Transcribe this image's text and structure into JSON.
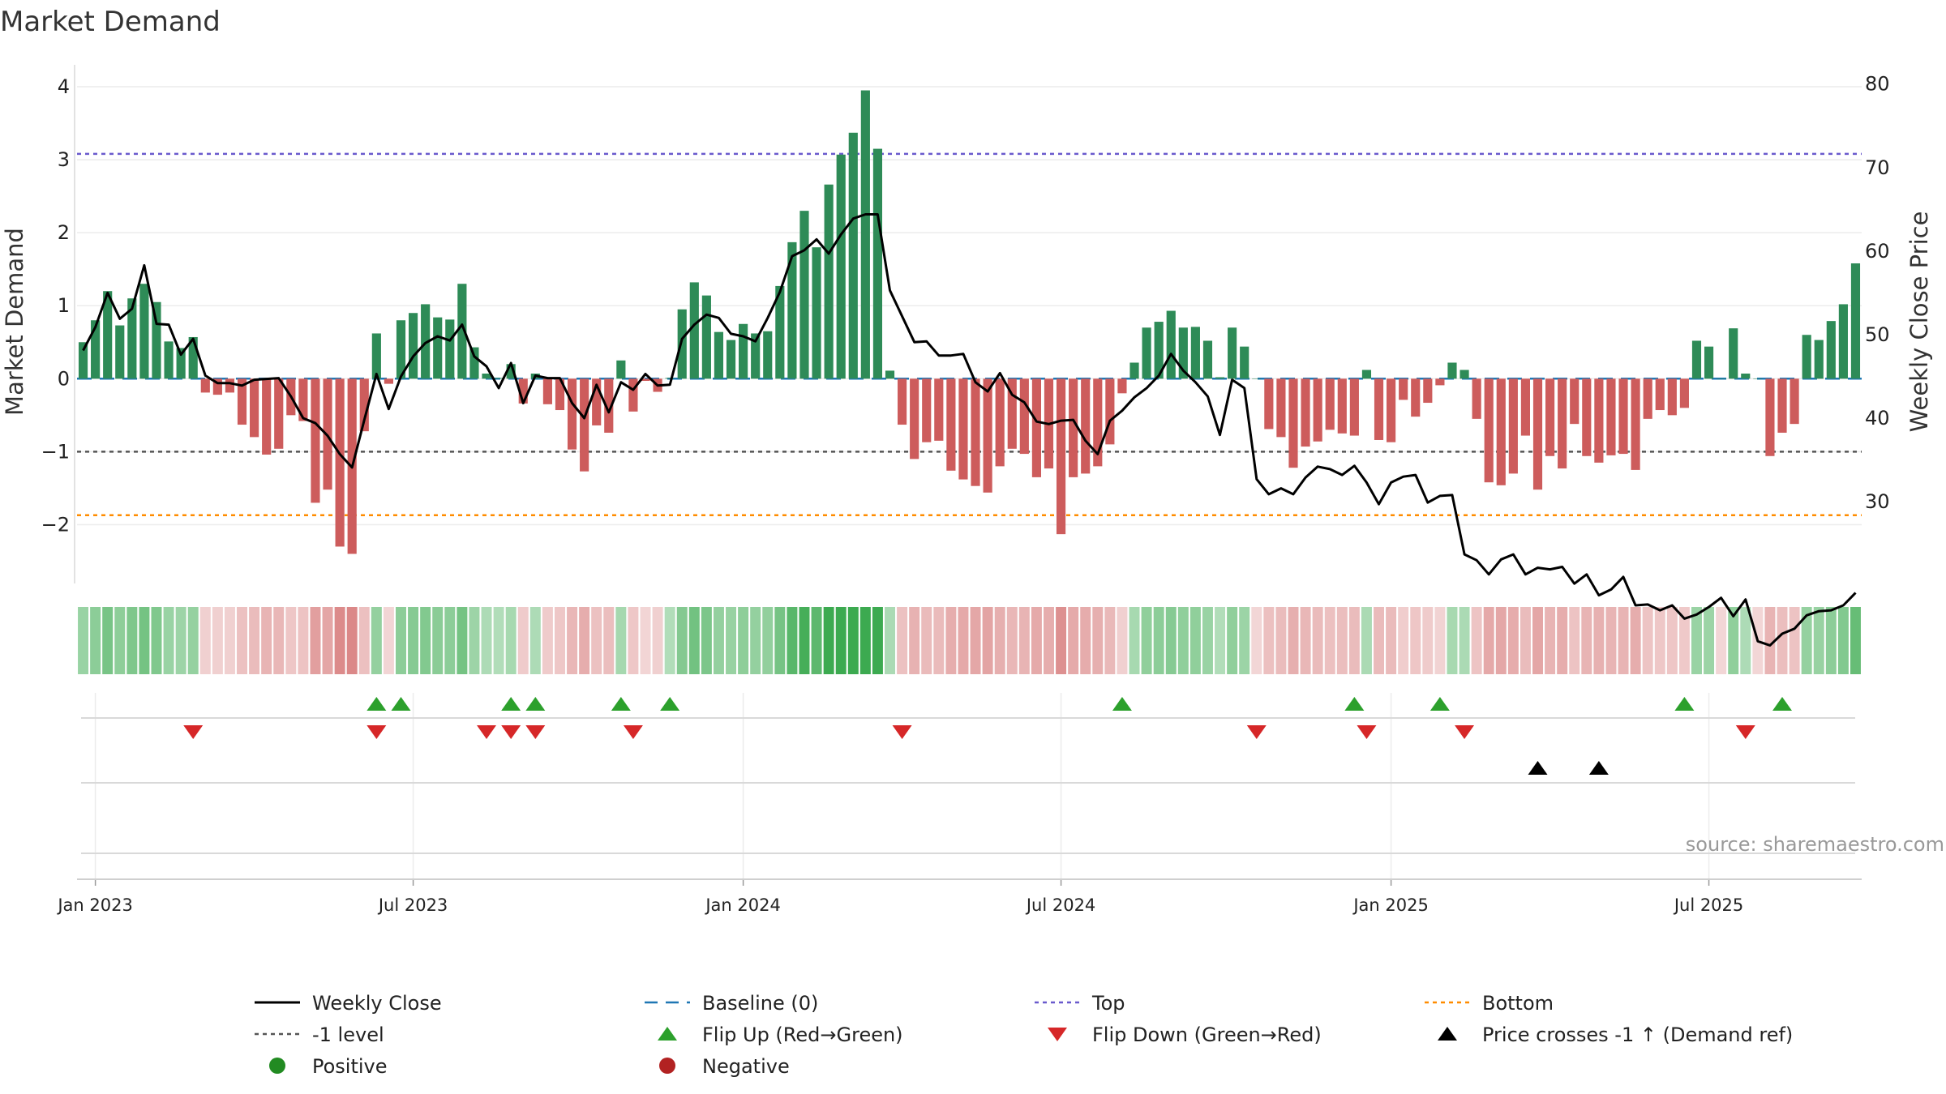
{
  "chart_data": {
    "type": "bar",
    "title": "Market Demand",
    "ylabel": "Market Demand",
    "y2label": "Weekly Close Price",
    "ylim": [
      -2.75,
      4.3
    ],
    "y2lim": [
      20.7,
      82.3
    ],
    "yticks": [
      -2,
      -1,
      0,
      1,
      2,
      3,
      4
    ],
    "y2ticks": [
      30,
      40,
      50,
      60,
      70,
      80
    ],
    "ytick_labels": [
      "−2",
      "−1",
      "0",
      "1",
      "2",
      "3",
      "4"
    ],
    "y2tick_labels": [
      "30",
      "40",
      "50",
      "60",
      "70",
      "80"
    ],
    "x_start": "2022-12-25",
    "week_count": 146,
    "x_ticks": [
      {
        "week": 1,
        "label": "Jan 2023"
      },
      {
        "week": 27,
        "label": "Jul 2023"
      },
      {
        "week": 54,
        "label": "Jan 2024"
      },
      {
        "week": 80,
        "label": "Jul 2024"
      },
      {
        "week": 107,
        "label": "Jan 2025"
      },
      {
        "week": 133,
        "label": "Jul 2025"
      }
    ],
    "demand": [
      0.5,
      0.8,
      1.2,
      0.73,
      1.1,
      1.3,
      1.05,
      0.51,
      0.42,
      0.57,
      -0.19,
      -0.22,
      -0.19,
      -0.63,
      -0.8,
      -1.04,
      -0.96,
      -0.5,
      -0.58,
      -1.7,
      -1.52,
      -2.3,
      -2.4,
      -0.72,
      0.62,
      -0.07,
      0.8,
      0.9,
      1.02,
      0.84,
      0.81,
      1.3,
      0.43,
      0.07,
      0.01,
      0.2,
      -0.34,
      0.07,
      -0.35,
      -0.43,
      -0.97,
      -1.27,
      -0.64,
      -0.74,
      0.25,
      -0.45,
      -0.03,
      -0.18,
      0.01,
      0.95,
      1.32,
      1.14,
      0.64,
      0.53,
      0.75,
      0.62,
      0.65,
      1.27,
      1.87,
      2.3,
      1.8,
      2.66,
      3.07,
      3.37,
      3.95,
      3.15,
      0.11,
      -0.63,
      -1.1,
      -0.87,
      -0.85,
      -1.26,
      -1.38,
      -1.47,
      -1.56,
      -1.2,
      -0.96,
      -1.03,
      -1.35,
      -1.23,
      -2.13,
      -1.35,
      -1.3,
      -1.2,
      -0.9,
      -0.2,
      0.22,
      0.7,
      0.78,
      0.93,
      0.7,
      0.71,
      0.52,
      0.02,
      0.7,
      0.44,
      0.0,
      -0.69,
      -0.8,
      -1.22,
      -0.93,
      -0.86,
      -0.7,
      -0.75,
      -0.78,
      0.12,
      -0.84,
      -0.87,
      -0.29,
      -0.52,
      -0.33,
      -0.09,
      0.22,
      0.12,
      -0.55,
      -1.42,
      -1.46,
      -1.3,
      -0.78,
      -1.52,
      -1.06,
      -1.23,
      -0.62,
      -1.06,
      -1.15,
      -1.05,
      -1.03,
      -1.25,
      -0.55,
      -0.43,
      -0.5,
      -0.4,
      0.52,
      0.44,
      0.0,
      0.69,
      0.07,
      0.0,
      -1.06,
      -0.74,
      -0.62,
      0.6,
      0.53,
      0.79,
      1.02,
      1.58
    ],
    "price": [
      48.1,
      50.9,
      55,
      51.9,
      53.1,
      58.3,
      51.3,
      51.2,
      47.6,
      49.5,
      45.1,
      44.2,
      44.2,
      43.9,
      44.6,
      44.7,
      44.8,
      42.6,
      40,
      39.4,
      37.9,
      35.7,
      34.1,
      39.8,
      45.3,
      41.1,
      45,
      47.4,
      49,
      49.8,
      49.3,
      51.2,
      47.4,
      46.2,
      43.6,
      46.6,
      41.8,
      45.1,
      44.8,
      44.8,
      41.8,
      40,
      44,
      40.7,
      44.3,
      43.4,
      45.3,
      43.9,
      44,
      49.5,
      51.2,
      52.4,
      52,
      50.1,
      49.8,
      49.2,
      52,
      55.1,
      59.4,
      60.1,
      61.4,
      59.7,
      62,
      63.9,
      64.4,
      64.4,
      55.3,
      52.2,
      49.1,
      49.2,
      47.5,
      47.5,
      47.7,
      44.3,
      43.2,
      45.4,
      42.8,
      41.9,
      39.6,
      39.3,
      39.7,
      39.8,
      37.3,
      35.7,
      39.7,
      40.9,
      42.5,
      43.6,
      45.1,
      47.7,
      45.7,
      44.3,
      42.6,
      38,
      44.6,
      43.6,
      32.7,
      30.9,
      31.6,
      30.9,
      32.9,
      34.2,
      33.9,
      33.2,
      34.3,
      32.3,
      29.7,
      32.3,
      33,
      33.2,
      29.9,
      30.7,
      30.8,
      23.7,
      23,
      21.3,
      23.1,
      23.7,
      21.3,
      22.1,
      21.9,
      22.2,
      20.2,
      21.3,
      18.8,
      19.5,
      21,
      17.6,
      17.7,
      17,
      17.6,
      16,
      16.5,
      17.4,
      18.5,
      16.3,
      18.3,
      13.3,
      12.8,
      14.2,
      14.8,
      16.4,
      16.9,
      17,
      17.6,
      19.1
    ],
    "reference_lines": {
      "top": 3.08,
      "minus_one": -1.0,
      "bottom": -1.87,
      "baseline": 0
    },
    "event_rows": {
      "flip_up_weeks": [
        24,
        26,
        35,
        37,
        44,
        48,
        85,
        104,
        111,
        131,
        139
      ],
      "flip_down_weeks": [
        9,
        24,
        33,
        35,
        37,
        45,
        67,
        96,
        105,
        113,
        136
      ],
      "price_cross_weeks": [
        119,
        124
      ]
    },
    "legend": [
      {
        "key": "weekly_close",
        "label": "Weekly Close"
      },
      {
        "key": "baseline",
        "label": "Baseline (0)"
      },
      {
        "key": "top",
        "label": "Top"
      },
      {
        "key": "bottom",
        "label": "Bottom"
      },
      {
        "key": "minus_one",
        "label": "-1 level"
      },
      {
        "key": "flip_up",
        "label": "Flip Up (Red→Green)"
      },
      {
        "key": "flip_down",
        "label": "Flip Down (Green→Red)"
      },
      {
        "key": "price_cross",
        "label": "Price crosses -1 ↑ (Demand ref)"
      },
      {
        "key": "positive",
        "label": "Positive"
      },
      {
        "key": "negative",
        "label": "Negative"
      }
    ],
    "legend_placement": "bottom",
    "grid": true,
    "source": "source: sharemaestro.com"
  },
  "colors": {
    "positive_bar": "#2e8b57",
    "negative_bar": "#cd5c5c",
    "price_line": "#000000",
    "baseline": "#1f77b4",
    "top": "#6a5acd",
    "minus_one": "#555555",
    "bottom": "#ff8c00",
    "flip_up": "#2ca02c",
    "flip_down": "#d62728",
    "price_cross": "#000000",
    "positive_dot": "#228b22",
    "negative_dot": "#b22222"
  }
}
